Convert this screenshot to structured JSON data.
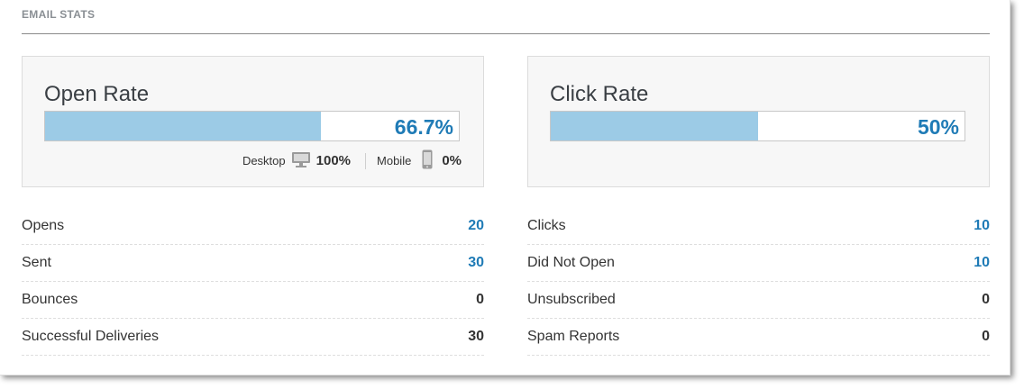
{
  "header": {
    "title": "EMAIL STATS"
  },
  "open_card": {
    "title": "Open Rate",
    "rate_text": "66.7%",
    "rate_fraction": 0.667,
    "desktop_label": "Desktop",
    "desktop_value": "100%",
    "mobile_label": "Mobile",
    "mobile_value": "0%"
  },
  "click_card": {
    "title": "Click Rate",
    "rate_text": "50%",
    "rate_fraction": 0.5
  },
  "left_stats": [
    {
      "label": "Opens",
      "value": "20",
      "highlight": true
    },
    {
      "label": "Sent",
      "value": "30",
      "highlight": true
    },
    {
      "label": "Bounces",
      "value": "0",
      "highlight": false
    },
    {
      "label": "Successful Deliveries",
      "value": "30",
      "highlight": false
    }
  ],
  "right_stats": [
    {
      "label": "Clicks",
      "value": "10",
      "highlight": true
    },
    {
      "label": "Did Not Open",
      "value": "10",
      "highlight": true
    },
    {
      "label": "Unsubscribed",
      "value": "0",
      "highlight": false
    },
    {
      "label": "Spam Reports",
      "value": "0",
      "highlight": false
    }
  ],
  "colors": {
    "accent": "#1f7bb6",
    "bar_fill": "#9ccbe6",
    "muted": "#8a8f94"
  },
  "icons": {
    "desktop": "desktop-monitor-icon",
    "mobile": "mobile-phone-icon"
  }
}
